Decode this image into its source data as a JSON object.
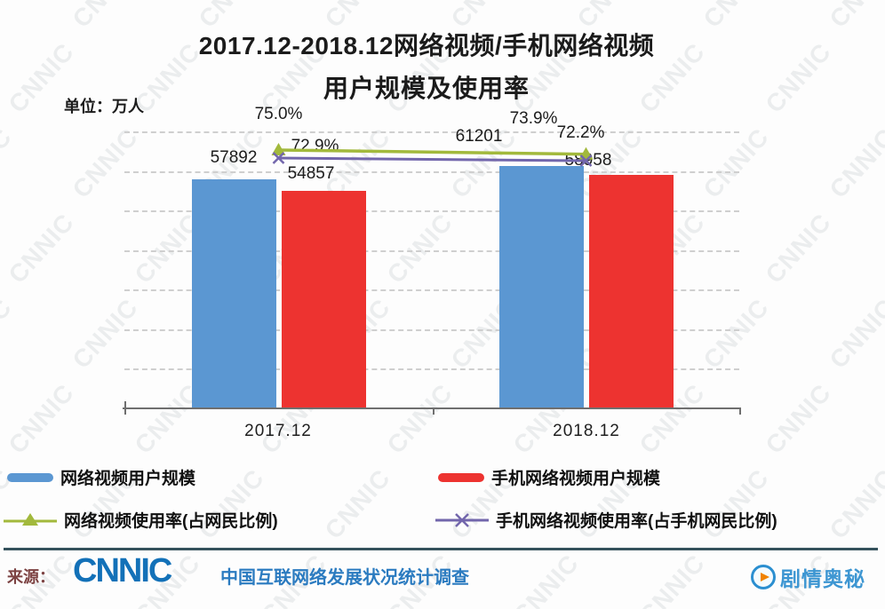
{
  "title": {
    "line1": "2017.12-2018.12网络视频/手机网络视频",
    "line2": "用户规模及使用率"
  },
  "unit_label": "单位：万人",
  "chart_data": {
    "type": "bar",
    "categories": [
      "2017.12",
      "2018.12"
    ],
    "series": [
      {
        "name": "网络视频用户规模",
        "type": "bar",
        "color": "#5b97d2",
        "values": [
          57892,
          61201
        ]
      },
      {
        "name": "手机网络视频用户规模",
        "type": "bar",
        "color": "#ed3330",
        "values": [
          54857,
          58958
        ]
      },
      {
        "name": "网络视频使用率(占网民比例)",
        "type": "line",
        "marker": "triangle",
        "color": "#a2b93c",
        "values": [
          75.0,
          73.9
        ]
      },
      {
        "name": "手机网络视频使用率(占手机网民比例)",
        "type": "line",
        "marker": "x",
        "color": "#7266ac",
        "values": [
          72.9,
          72.2
        ]
      }
    ],
    "unit": "万人",
    "ylim": [
      0,
      70000
    ],
    "grid": "horizontal-dashed",
    "legend_position": "bottom"
  },
  "legend": {
    "items": [
      {
        "label": "网络视频用户规模",
        "marker": "bar"
      },
      {
        "label": "手机网络视频用户规模",
        "marker": "bar"
      },
      {
        "label": "网络视频使用率(占网民比例)",
        "marker": "line-triangle"
      },
      {
        "label": "手机网络视频使用率(占手机网民比例)",
        "marker": "line-x"
      }
    ]
  },
  "footer": {
    "source_label": "来源：",
    "logo": "CNNIC",
    "tagline": "中国互联网络发展状况统计调查"
  },
  "watermark_text": "CNNIC",
  "corner_brand": {
    "name": "剧情奥秘"
  }
}
